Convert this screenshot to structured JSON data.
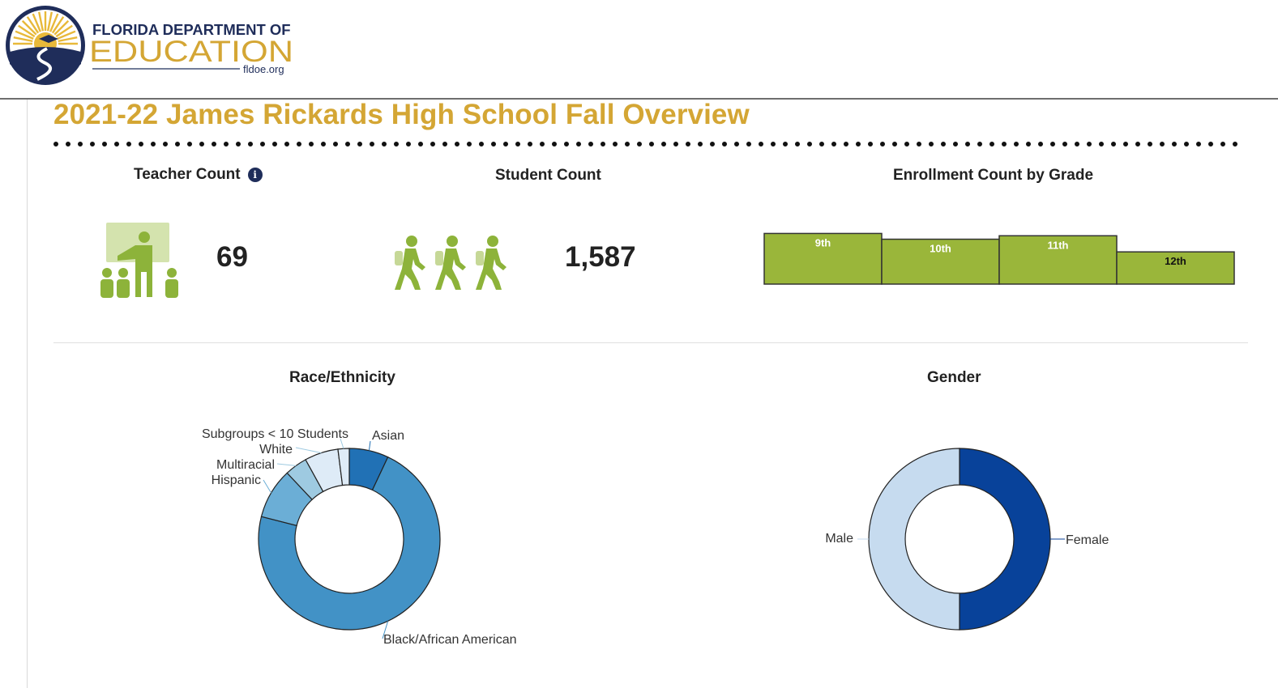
{
  "header": {
    "logo": {
      "line1": "FLORIDA DEPARTMENT OF",
      "line2": "EDUCATION",
      "line3": "fldoe.org"
    }
  },
  "page": {
    "title": "2021-22 James Rickards High School Fall Overview"
  },
  "colors": {
    "title_gold": "#d4a634",
    "icon_green": "#8db33a",
    "bar_green": "#9ab63a",
    "race_asian": "#2171b5",
    "race_black": "#4292c6",
    "race_hispanic": "#6baed6",
    "race_multiracial": "#9ecae1",
    "race_white": "#deebf7",
    "gender_female": "#08429a",
    "gender_male": "#c6dbef"
  },
  "teacher_count": {
    "title": "Teacher Count",
    "value": "69",
    "icon": "teacher-icon",
    "info_icon": "info-icon"
  },
  "student_count": {
    "title": "Student Count",
    "value": "1,587",
    "icon": "students-walking-icon"
  },
  "chart_data": [
    {
      "type": "bar",
      "title": "Enrollment Count by Grade",
      "categories": [
        "9th",
        "10th",
        "11th",
        "12th"
      ],
      "values": [
        440,
        390,
        420,
        280
      ],
      "ylim": [
        0,
        450
      ],
      "grid": false,
      "legend": "none",
      "labels_inside_bars": true
    },
    {
      "type": "pie",
      "style": "donut",
      "title": "Race/Ethnicity",
      "slices": [
        {
          "label": "Asian",
          "value": 7
        },
        {
          "label": "Black/African American",
          "value": 72
        },
        {
          "label": "Hispanic",
          "value": 9
        },
        {
          "label": "Multiracial",
          "value": 4
        },
        {
          "label": "White",
          "value": 6
        },
        {
          "label": "Subgroups < 10 Students",
          "value": 2
        }
      ],
      "legend": "callout labels"
    },
    {
      "type": "pie",
      "style": "donut",
      "title": "Gender",
      "slices": [
        {
          "label": "Female",
          "value": 50
        },
        {
          "label": "Male",
          "value": 50
        }
      ],
      "legend": "callout labels"
    }
  ]
}
